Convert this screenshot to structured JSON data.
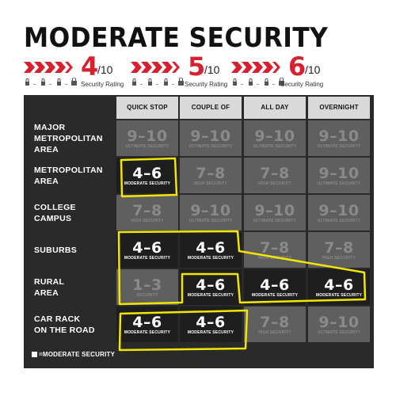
{
  "title": "MODERATE SECURITY",
  "ratings": [
    {
      "num": "4",
      "den": "/10",
      "caption": "Security Rating"
    },
    {
      "num": "5",
      "den": "/10",
      "caption": "Security Rating"
    },
    {
      "num": "6",
      "den": "/10",
      "caption": "Security Rating"
    }
  ],
  "columns": [
    "QUICK STOP",
    "COUPLE OF HOURS",
    "ALL DAY",
    "OVERNIGHT"
  ],
  "rows": [
    {
      "label_lines": [
        "MAJOR",
        "METROPOLITAN",
        "AREA"
      ]
    },
    {
      "label_lines": [
        "METROPOLITAN",
        "AREA"
      ]
    },
    {
      "label_lines": [
        "COLLEGE",
        "CAMPUS"
      ]
    },
    {
      "label_lines": [
        "SUBURBS"
      ]
    },
    {
      "label_lines": [
        "RURAL",
        "AREA"
      ]
    },
    {
      "label_lines": [
        "CAR RACK",
        "ON THE ROAD"
      ]
    }
  ],
  "cells": [
    [
      {
        "value": "9–10",
        "label": "ULTIMATE SECURITY",
        "moderate": false
      },
      {
        "value": "9–10",
        "label": "ULTIMATE SECURITY",
        "moderate": false
      },
      {
        "value": "9–10",
        "label": "ULTIMATE SECURITY",
        "moderate": false
      },
      {
        "value": "9–10",
        "label": "ULTIMATE SECURITY",
        "moderate": false
      }
    ],
    [
      {
        "value": "4–6",
        "label": "MODERATE SECURITY",
        "moderate": true
      },
      {
        "value": "7–8",
        "label": "HIGH SECURITY",
        "moderate": false
      },
      {
        "value": "7–8",
        "label": "HIGH SECURITY",
        "moderate": false
      },
      {
        "value": "9–10",
        "label": "ULTIMATE SECURITY",
        "moderate": false
      }
    ],
    [
      {
        "value": "7–8",
        "label": "HIGH SECURITY",
        "moderate": false
      },
      {
        "value": "9–10",
        "label": "ULTIMATE SECURITY",
        "moderate": false
      },
      {
        "value": "9–10",
        "label": "ULTIMATE SECURITY",
        "moderate": false
      },
      {
        "value": "9–10",
        "label": "ULTIMATE SECURITY",
        "moderate": false
      }
    ],
    [
      {
        "value": "4–6",
        "label": "MODERATE SECURITY",
        "moderate": true
      },
      {
        "value": "4–6",
        "label": "MODERATE SECURITY",
        "moderate": true
      },
      {
        "value": "7–8",
        "label": "HIGH SECURITY",
        "moderate": false
      },
      {
        "value": "7–8",
        "label": "HIGH SECURITY",
        "moderate": false
      }
    ],
    [
      {
        "value": "1–3",
        "label": "SECURITY",
        "moderate": false
      },
      {
        "value": "4–6",
        "label": "MODERATE SECURITY",
        "moderate": true
      },
      {
        "value": "4–6",
        "label": "MODERATE SECURITY",
        "moderate": true
      },
      {
        "value": "4–6",
        "label": "MODERATE SECURITY",
        "moderate": true
      }
    ],
    [
      {
        "value": "4–6",
        "label": "MODERATE SECURITY",
        "moderate": true
      },
      {
        "value": "4–6",
        "label": "MODERATE SECURITY",
        "moderate": true
      },
      {
        "value": "7–8",
        "label": "HIGH SECURITY",
        "moderate": false
      },
      {
        "value": "9–10",
        "label": "ULTIMATE SECURITY",
        "moderate": false
      }
    ]
  ],
  "legend": {
    "symbol": "■",
    "text": "=MODERATE SECURITY"
  },
  "colors": {
    "accent": "#d6222e",
    "highlight": "#f2e600",
    "moderate_cell": "#1e1e1e",
    "other_cell": "#5f5f5f",
    "header": "#d9d9d9"
  }
}
